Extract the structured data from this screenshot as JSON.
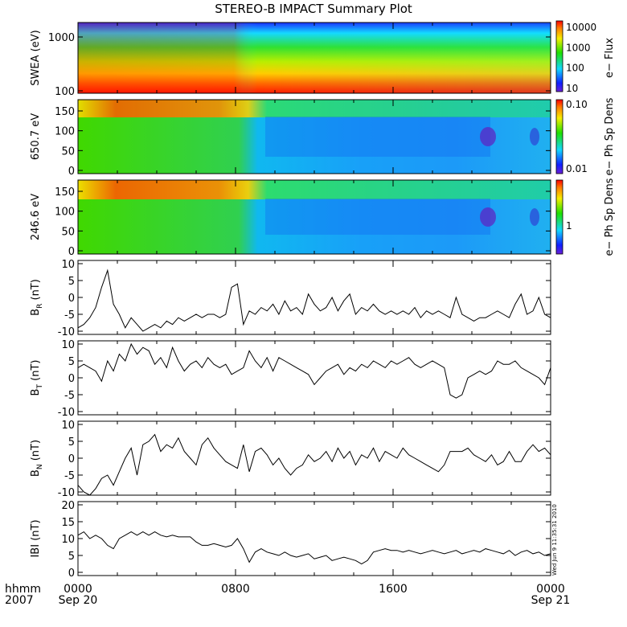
{
  "title": "STEREO-B IMPACT Summary Plot",
  "stamp": "Wed Jun  9 11:35:31 2010",
  "bottom_axis": {
    "row1_label": "hhmm",
    "row2_label": "2007",
    "ticks": [
      {
        "x": 0,
        "top": "0000",
        "bottom": "Sep 20"
      },
      {
        "x": 8,
        "top": "0800",
        "bottom": ""
      },
      {
        "x": 16,
        "top": "1600",
        "bottom": ""
      },
      {
        "x": 24,
        "top": "0000",
        "bottom": "Sep 21"
      }
    ]
  },
  "colors": {
    "line": "#000000",
    "frame": "#000000"
  },
  "chart_data": [
    {
      "type": "heatmap",
      "ylabel": "SWEA (eV)",
      "yticks": [
        "1000",
        "100"
      ],
      "colorbar": {
        "label": "e− Flux",
        "ticks": [
          "10000",
          "1000",
          "100",
          "10"
        ]
      }
    },
    {
      "type": "heatmap",
      "ylabel": "650.7 eV",
      "yticks": [
        "150",
        "100",
        "50",
        "0"
      ],
      "colorbar": {
        "label": "e− Ph Sp Dens",
        "ticks": [
          "0.10",
          "0.01"
        ]
      }
    },
    {
      "type": "heatmap",
      "ylabel": "246.6 eV",
      "yticks": [
        "150",
        "100",
        "50",
        "0"
      ],
      "colorbar": {
        "label": "e− Ph Sp Dens",
        "ticks": [
          "1"
        ]
      }
    },
    {
      "type": "line",
      "ylabel": "BR (nT)",
      "ylabel_main": "B",
      "ylabel_sub": "R",
      "ylabel_unit": "(nT)",
      "ylim": [
        -10,
        10
      ],
      "yticks": [
        "10",
        "5",
        "0",
        "-5",
        "-10"
      ],
      "x": [
        0,
        0.3,
        0.6,
        0.9,
        1.2,
        1.5,
        1.8,
        2.1,
        2.4,
        2.7,
        3.0,
        3.3,
        3.6,
        3.9,
        4.2,
        4.5,
        4.8,
        5.1,
        5.4,
        5.7,
        6.0,
        6.3,
        6.6,
        6.9,
        7.2,
        7.5,
        7.8,
        8.1,
        8.4,
        8.7,
        9.0,
        9.3,
        9.6,
        9.9,
        10.2,
        10.5,
        10.8,
        11.1,
        11.4,
        11.7,
        12.0,
        12.3,
        12.6,
        12.9,
        13.2,
        13.5,
        13.8,
        14.1,
        14.4,
        14.7,
        15.0,
        15.3,
        15.6,
        15.9,
        16.2,
        16.5,
        16.8,
        17.1,
        17.4,
        17.7,
        18.0,
        18.3,
        18.6,
        18.9,
        19.2,
        19.5,
        19.8,
        20.1,
        20.4,
        20.7,
        21.0,
        21.3,
        21.6,
        21.9,
        22.2,
        22.5,
        22.8,
        23.1,
        23.4,
        23.7,
        24.0
      ],
      "values": [
        -9,
        -8,
        -6,
        -3,
        3,
        8,
        -2,
        -5,
        -9,
        -6,
        -8,
        -10,
        -9,
        -8,
        -9,
        -7,
        -8,
        -6,
        -7,
        -6,
        -5,
        -6,
        -5,
        -5,
        -6,
        -5,
        3,
        4,
        -8,
        -4,
        -5,
        -3,
        -4,
        -2,
        -5,
        -1,
        -4,
        -3,
        -5,
        1,
        -2,
        -4,
        -3,
        0,
        -4,
        -1,
        1,
        -5,
        -3,
        -4,
        -2,
        -4,
        -5,
        -4,
        -5,
        -4,
        -5,
        -3,
        -6,
        -4,
        -5,
        -4,
        -5,
        -6,
        0,
        -5,
        -6,
        -7,
        -6,
        -6,
        -5,
        -4,
        -5,
        -6,
        -2,
        1,
        -5,
        -4,
        0,
        -5,
        -6
      ]
    },
    {
      "type": "line",
      "ylabel": "BT (nT)",
      "ylabel_main": "B",
      "ylabel_sub": "T",
      "ylabel_unit": "(nT)",
      "ylim": [
        -10,
        10
      ],
      "yticks": [
        "10",
        "5",
        "0",
        "-5",
        "-10"
      ],
      "x": [
        0,
        0.3,
        0.6,
        0.9,
        1.2,
        1.5,
        1.8,
        2.1,
        2.4,
        2.7,
        3.0,
        3.3,
        3.6,
        3.9,
        4.2,
        4.5,
        4.8,
        5.1,
        5.4,
        5.7,
        6.0,
        6.3,
        6.6,
        6.9,
        7.2,
        7.5,
        7.8,
        8.1,
        8.4,
        8.7,
        9.0,
        9.3,
        9.6,
        9.9,
        10.2,
        10.5,
        10.8,
        11.1,
        11.4,
        11.7,
        12.0,
        12.3,
        12.6,
        12.9,
        13.2,
        13.5,
        13.8,
        14.1,
        14.4,
        14.7,
        15.0,
        15.3,
        15.6,
        15.9,
        16.2,
        16.5,
        16.8,
        17.1,
        17.4,
        17.7,
        18.0,
        18.3,
        18.6,
        18.9,
        19.2,
        19.5,
        19.8,
        20.1,
        20.4,
        20.7,
        21.0,
        21.3,
        21.6,
        21.9,
        22.2,
        22.5,
        22.8,
        23.1,
        23.4,
        23.7,
        24.0
      ],
      "values": [
        3,
        4,
        3,
        2,
        -1,
        5,
        2,
        7,
        5,
        10,
        7,
        9,
        8,
        4,
        6,
        3,
        9,
        5,
        2,
        4,
        5,
        3,
        6,
        4,
        3,
        4,
        1,
        2,
        3,
        8,
        5,
        3,
        6,
        2,
        6,
        5,
        4,
        3,
        2,
        1,
        -2,
        0,
        2,
        3,
        4,
        1,
        3,
        2,
        4,
        3,
        5,
        4,
        3,
        5,
        4,
        5,
        6,
        4,
        3,
        4,
        5,
        4,
        3,
        -5,
        -6,
        -5,
        0,
        1,
        2,
        1,
        2,
        5,
        4,
        4,
        5,
        3,
        2,
        1,
        0,
        -2,
        3
      ]
    },
    {
      "type": "line",
      "ylabel": "BN (nT)",
      "ylabel_main": "B",
      "ylabel_sub": "N",
      "ylabel_unit": "(nT)",
      "ylim": [
        -10,
        10
      ],
      "yticks": [
        "10",
        "5",
        "0",
        "-5",
        "-10"
      ],
      "x": [
        0,
        0.3,
        0.6,
        0.9,
        1.2,
        1.5,
        1.8,
        2.1,
        2.4,
        2.7,
        3.0,
        3.3,
        3.6,
        3.9,
        4.2,
        4.5,
        4.8,
        5.1,
        5.4,
        5.7,
        6.0,
        6.3,
        6.6,
        6.9,
        7.2,
        7.5,
        7.8,
        8.1,
        8.4,
        8.7,
        9.0,
        9.3,
        9.6,
        9.9,
        10.2,
        10.5,
        10.8,
        11.1,
        11.4,
        11.7,
        12.0,
        12.3,
        12.6,
        12.9,
        13.2,
        13.5,
        13.8,
        14.1,
        14.4,
        14.7,
        15.0,
        15.3,
        15.6,
        15.9,
        16.2,
        16.5,
        16.8,
        17.1,
        17.4,
        17.7,
        18.0,
        18.3,
        18.6,
        18.9,
        19.2,
        19.5,
        19.8,
        20.1,
        20.4,
        20.7,
        21.0,
        21.3,
        21.6,
        21.9,
        22.2,
        22.5,
        22.8,
        23.1,
        23.4,
        23.7,
        24.0
      ],
      "values": [
        -8,
        -10,
        -11,
        -9,
        -6,
        -5,
        -8,
        -4,
        0,
        3,
        -5,
        4,
        5,
        7,
        2,
        4,
        3,
        6,
        2,
        0,
        -2,
        4,
        6,
        3,
        1,
        -1,
        -2,
        -3,
        4,
        -4,
        2,
        3,
        1,
        -2,
        0,
        -3,
        -5,
        -3,
        -2,
        1,
        -1,
        0,
        2,
        -1,
        3,
        0,
        2,
        -2,
        1,
        0,
        3,
        -1,
        2,
        1,
        0,
        3,
        1,
        0,
        -1,
        -2,
        -3,
        -4,
        -2,
        2,
        2,
        2,
        3,
        1,
        0,
        -1,
        1,
        -2,
        -1,
        2,
        -1,
        -1,
        2,
        4,
        2,
        3,
        1
      ]
    },
    {
      "type": "line",
      "ylabel": "|B| (nT)",
      "ylabel_main": "IBI",
      "ylabel_sub": "",
      "ylabel_unit": "(nT)",
      "ylim": [
        0,
        20
      ],
      "yticks": [
        "20",
        "15",
        "10",
        "5",
        "0"
      ],
      "x": [
        0,
        0.3,
        0.6,
        0.9,
        1.2,
        1.5,
        1.8,
        2.1,
        2.4,
        2.7,
        3.0,
        3.3,
        3.6,
        3.9,
        4.2,
        4.5,
        4.8,
        5.1,
        5.4,
        5.7,
        6.0,
        6.3,
        6.6,
        6.9,
        7.2,
        7.5,
        7.8,
        8.1,
        8.4,
        8.7,
        9.0,
        9.3,
        9.6,
        9.9,
        10.2,
        10.5,
        10.8,
        11.1,
        11.4,
        11.7,
        12.0,
        12.3,
        12.6,
        12.9,
        13.2,
        13.5,
        13.8,
        14.1,
        14.4,
        14.7,
        15.0,
        15.3,
        15.6,
        15.9,
        16.2,
        16.5,
        16.8,
        17.1,
        17.4,
        17.7,
        18.0,
        18.3,
        18.6,
        18.9,
        19.2,
        19.5,
        19.8,
        20.1,
        20.4,
        20.7,
        21.0,
        21.3,
        21.6,
        21.9,
        22.2,
        22.5,
        22.8,
        23.1,
        23.4,
        23.7,
        24.0
      ],
      "values": [
        11,
        12,
        10,
        11,
        10,
        8,
        7,
        10,
        11,
        12,
        11,
        12,
        11,
        12,
        11,
        10.5,
        11,
        10.5,
        10.5,
        10.5,
        9,
        8,
        8,
        8.5,
        8,
        7.5,
        8,
        10,
        7,
        3,
        6,
        7,
        6,
        5.5,
        5,
        6,
        5,
        4.5,
        5,
        5.5,
        4,
        4.5,
        5,
        3.5,
        4,
        4.5,
        4,
        3.5,
        2.5,
        3.5,
        6,
        6.5,
        7,
        6.5,
        6.5,
        6,
        6.5,
        6,
        5.5,
        6,
        6.5,
        6,
        5.5,
        6,
        6.5,
        5.5,
        6,
        6.5,
        6,
        7,
        6.5,
        6,
        5.5,
        6.5,
        5,
        6,
        6.5,
        5.5,
        6,
        5,
        5.5
      ]
    }
  ]
}
